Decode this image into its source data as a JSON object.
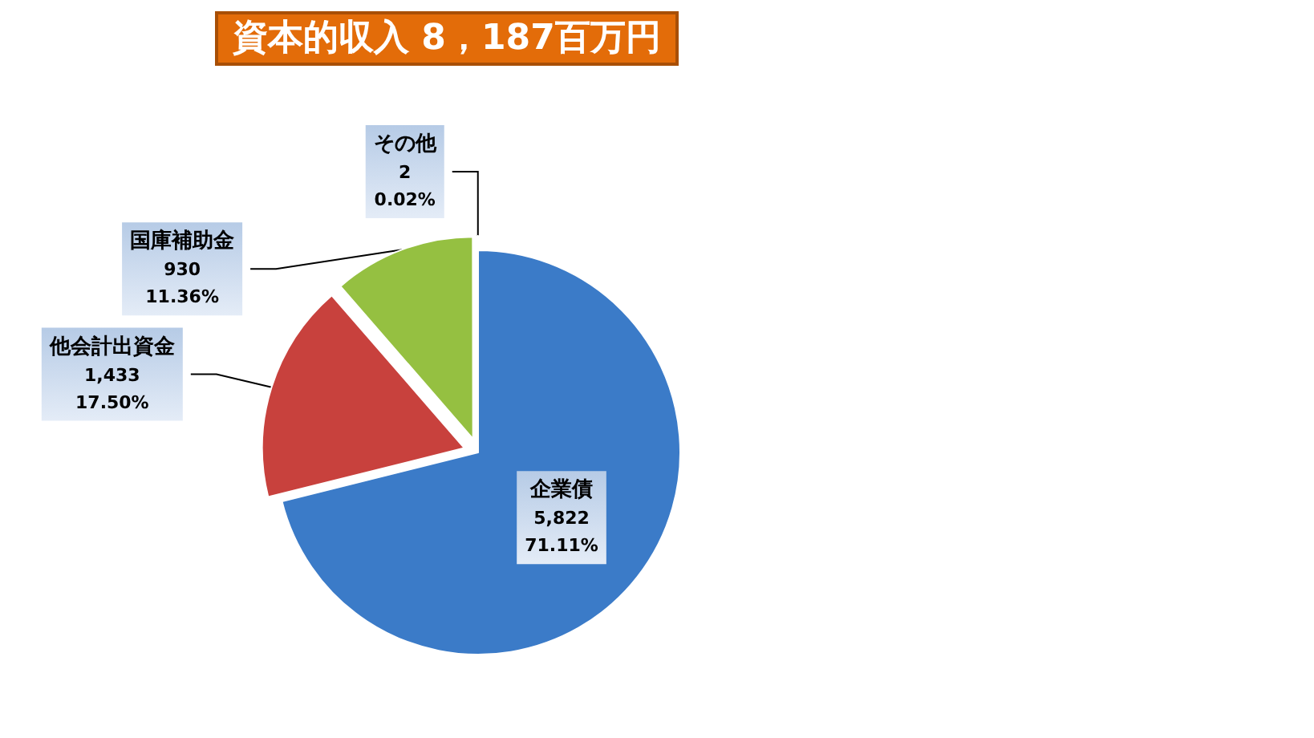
{
  "chart_data": {
    "type": "pie",
    "title": "資本的収入 8，187百万円",
    "categories": [
      "企業債",
      "他会計出資金",
      "国庫補助金",
      "その他"
    ],
    "values": [
      5822,
      1433,
      930,
      2
    ],
    "colors": [
      "#3b7bc8",
      "#c8413d",
      "#95c041",
      "#8064a2"
    ],
    "value_labels": [
      "5,822\n71.11%",
      "1,433\n17.50%",
      "930\n11.36%",
      "2\n0.02%"
    ]
  }
}
